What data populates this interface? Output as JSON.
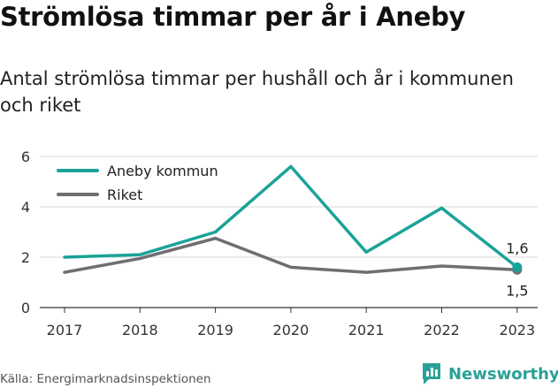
{
  "title": "Strömlösa timmar per år i Aneby",
  "subtitle": "Antal strömlösa timmar per hushåll och år i kommunen och riket",
  "source": "Källa: Energimarknadsinspektionen",
  "brand": {
    "name": "Newsworthy",
    "icon": "newsworthy-logo-icon"
  },
  "colors": {
    "aneby": "#1aa398",
    "riket": "#6e6e73",
    "grid": "#d9d9d9",
    "brand": "#2aa198"
  },
  "chart_data": {
    "type": "line",
    "x": [
      "2017",
      "2018",
      "2019",
      "2020",
      "2021",
      "2022",
      "2023"
    ],
    "ylim": [
      0,
      6
    ],
    "yticks": [
      "0",
      "2",
      "4",
      "6"
    ],
    "grid": true,
    "legend_position": "top-left",
    "series": [
      {
        "name": "Aneby kommun",
        "values": [
          2.0,
          2.1,
          3.0,
          5.6,
          2.2,
          3.95,
          1.6
        ],
        "color": "#1aa398",
        "end_label": "1,6"
      },
      {
        "name": "Riket",
        "values": [
          1.4,
          1.95,
          2.75,
          1.6,
          1.4,
          1.65,
          1.5
        ],
        "color": "#6e6e73",
        "end_label": "1,5"
      }
    ]
  }
}
